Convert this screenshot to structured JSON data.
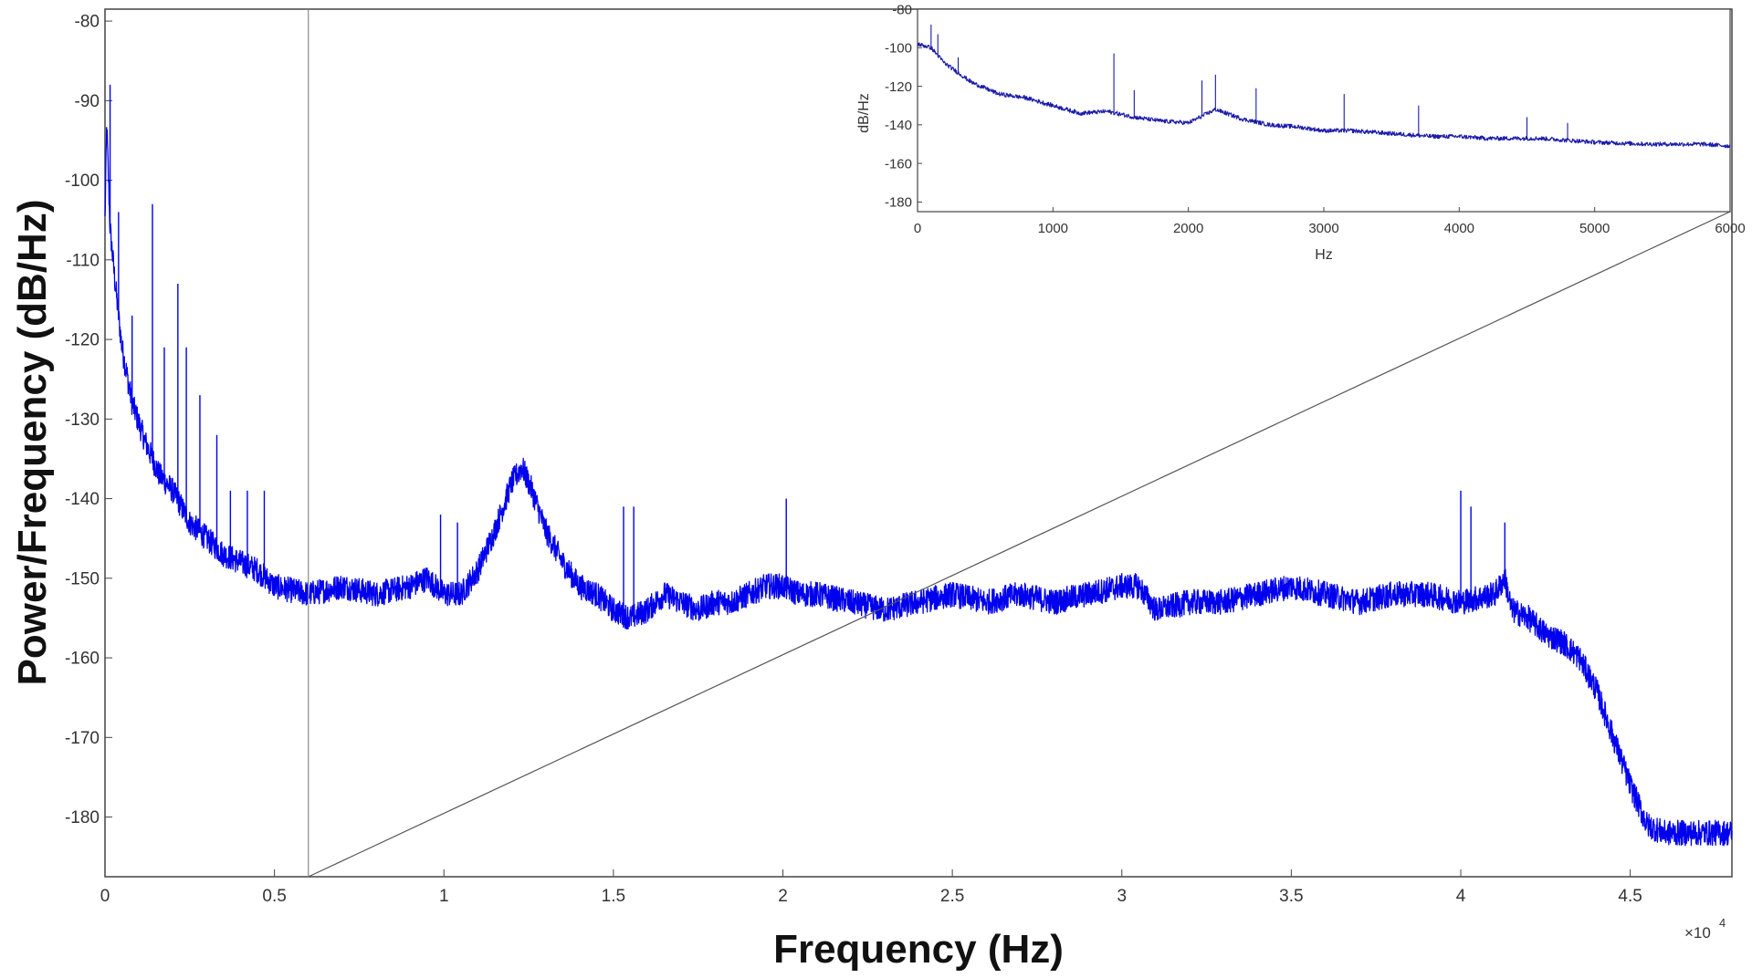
{
  "chart_data": [
    {
      "type": "line",
      "role": "main",
      "xlabel": "Frequency (Hz)",
      "ylabel": "Power/Frequency (dB/Hz)",
      "x_exponent_label": "×10",
      "x_exponent_power": "4",
      "xlim": [
        0,
        48000
      ],
      "ylim": [
        -187.5,
        -78.5
      ],
      "xticks": [
        0,
        5000,
        10000,
        15000,
        20000,
        25000,
        30000,
        35000,
        40000,
        45000
      ],
      "xtick_labels": [
        "0",
        "0.5",
        "1",
        "1.5",
        "2",
        "2.5",
        "3",
        "3.5",
        "4",
        "4.5"
      ],
      "yticks": [
        -80,
        -90,
        -100,
        -110,
        -120,
        -130,
        -140,
        -150,
        -160,
        -170,
        -180
      ],
      "ytick_labels": [
        "-80",
        "-90",
        "-100",
        "-110",
        "-120",
        "-130",
        "-140",
        "-150",
        "-160",
        "-170",
        "-180"
      ],
      "grid": false,
      "series_color": "#0000ee",
      "zoom_marker_x": 6000,
      "series": [
        {
          "x": [
            0,
            50,
            150,
            300,
            500,
            800,
            1200,
            1600,
            2000,
            2500,
            3000,
            3500,
            4000,
            4500,
            5000,
            6000,
            7000,
            8000,
            9000,
            9500,
            10000,
            10500,
            11000,
            11500,
            12000,
            12300,
            12600,
            13000,
            13500,
            14000,
            14500,
            15000,
            15500,
            16000,
            16500,
            17000,
            17500,
            18000,
            18500,
            19000,
            19500,
            20000,
            20500,
            21000,
            22000,
            23000,
            24000,
            25000,
            26000,
            27000,
            28000,
            29000,
            30000,
            30500,
            31000,
            32000,
            33000,
            34000,
            35000,
            36000,
            37000,
            38000,
            39000,
            40000,
            41000,
            41300,
            41500,
            42000,
            42500,
            43000,
            43500,
            44000,
            44500,
            45000,
            45500,
            46000,
            46500,
            47000,
            48000
          ],
          "y": [
            -105,
            -93,
            -106,
            -113,
            -121,
            -128,
            -133,
            -137,
            -139,
            -143,
            -145,
            -147,
            -148,
            -149,
            -151,
            -152,
            -151,
            -152,
            -151,
            -150,
            -152,
            -152,
            -149,
            -144,
            -138,
            -136,
            -139,
            -144,
            -148,
            -151,
            -152,
            -154,
            -155,
            -154,
            -152,
            -153,
            -154,
            -153,
            -153,
            -152,
            -151,
            -151,
            -152,
            -152,
            -153,
            -154,
            -153,
            -152,
            -153,
            -152,
            -153,
            -152,
            -151,
            -151,
            -154,
            -153,
            -153,
            -152,
            -151,
            -152,
            -153,
            -152,
            -152,
            -153,
            -152,
            -150,
            -154,
            -155,
            -157,
            -158,
            -160,
            -164,
            -170,
            -176,
            -181,
            -182,
            -182,
            -182,
            -182
          ]
        }
      ],
      "spikes": [
        {
          "x": 150,
          "y": -88
        },
        {
          "x": 400,
          "y": -104
        },
        {
          "x": 800,
          "y": -117
        },
        {
          "x": 1400,
          "y": -103
        },
        {
          "x": 1750,
          "y": -121
        },
        {
          "x": 2150,
          "y": -113
        },
        {
          "x": 2400,
          "y": -121
        },
        {
          "x": 2800,
          "y": -127
        },
        {
          "x": 3300,
          "y": -132
        },
        {
          "x": 3700,
          "y": -139
        },
        {
          "x": 4200,
          "y": -139
        },
        {
          "x": 4700,
          "y": -139
        },
        {
          "x": 9900,
          "y": -142
        },
        {
          "x": 10400,
          "y": -143
        },
        {
          "x": 15300,
          "y": -141
        },
        {
          "x": 15600,
          "y": -141
        },
        {
          "x": 20100,
          "y": -140
        },
        {
          "x": 40000,
          "y": -139
        },
        {
          "x": 40300,
          "y": -141
        },
        {
          "x": 41300,
          "y": -143
        }
      ]
    },
    {
      "type": "line",
      "role": "inset",
      "xlabel": "Hz",
      "ylabel": "dB/Hz",
      "xlim": [
        0,
        6000
      ],
      "ylim": [
        -185,
        -80
      ],
      "xticks": [
        0,
        1000,
        2000,
        3000,
        4000,
        5000,
        6000
      ],
      "xtick_labels": [
        "0",
        "1000",
        "2000",
        "3000",
        "4000",
        "5000",
        "6000"
      ],
      "yticks": [
        -80,
        -100,
        -120,
        -140,
        -160,
        -180
      ],
      "ytick_labels": [
        "-80",
        "-100",
        "-120",
        "-140",
        "-160",
        "-180"
      ],
      "grid": false,
      "series_color": "#1a1aaa",
      "series": [
        {
          "x": [
            0,
            100,
            200,
            300,
            400,
            600,
            800,
            1000,
            1200,
            1400,
            1600,
            1800,
            2000,
            2200,
            2400,
            2600,
            2800,
            3000,
            3200,
            3400,
            3600,
            3800,
            4000,
            4200,
            4400,
            4600,
            4800,
            5000,
            5400,
            5800,
            6000
          ],
          "y": [
            -98,
            -100,
            -108,
            -113,
            -118,
            -124,
            -126,
            -130,
            -134,
            -133,
            -136,
            -138,
            -139,
            -132,
            -137,
            -140,
            -141,
            -143,
            -143,
            -144,
            -145,
            -146,
            -146,
            -147,
            -147,
            -147,
            -148,
            -149,
            -150,
            -150,
            -151
          ]
        }
      ],
      "spikes": [
        {
          "x": 100,
          "y": -88
        },
        {
          "x": 150,
          "y": -93
        },
        {
          "x": 300,
          "y": -105
        },
        {
          "x": 1450,
          "y": -103
        },
        {
          "x": 1600,
          "y": -122
        },
        {
          "x": 2100,
          "y": -117
        },
        {
          "x": 2200,
          "y": -114
        },
        {
          "x": 2500,
          "y": -121
        },
        {
          "x": 3150,
          "y": -124
        },
        {
          "x": 3700,
          "y": -130
        },
        {
          "x": 4500,
          "y": -136
        },
        {
          "x": 4800,
          "y": -139
        }
      ]
    }
  ]
}
